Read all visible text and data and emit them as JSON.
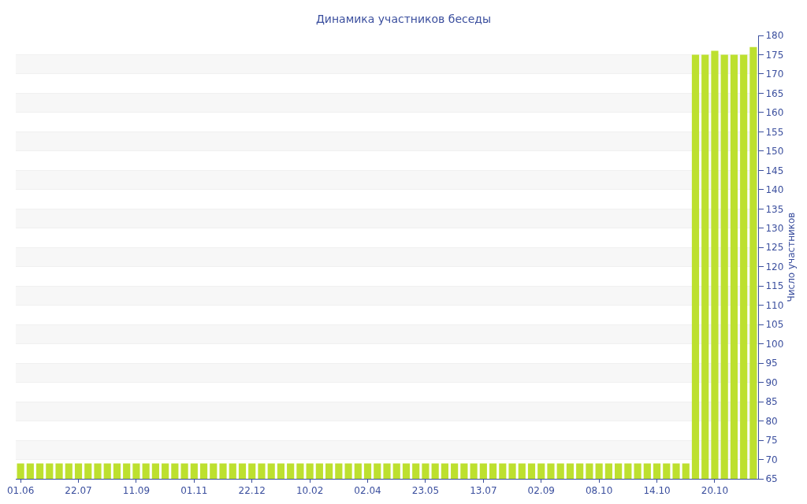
{
  "chart_data": {
    "type": "bar",
    "title": "Динамика участников беседы",
    "ylabel": "Число участников",
    "categories": [
      "01.06",
      null,
      null,
      null,
      null,
      null,
      "22.07",
      null,
      null,
      null,
      null,
      null,
      "11.09",
      null,
      null,
      null,
      null,
      null,
      "01.11",
      null,
      null,
      null,
      null,
      null,
      "22.12",
      null,
      null,
      null,
      null,
      null,
      "10.02",
      null,
      null,
      null,
      null,
      null,
      "02.04",
      null,
      null,
      null,
      null,
      null,
      "23.05",
      null,
      null,
      null,
      null,
      null,
      "13.07",
      null,
      null,
      null,
      null,
      null,
      "02.09",
      null,
      null,
      null,
      null,
      null,
      "08.10",
      null,
      null,
      null,
      null,
      null,
      "14.10",
      null,
      null,
      null,
      null,
      null,
      "20.10",
      null,
      null,
      null,
      null
    ],
    "values": [
      69,
      69,
      69,
      69,
      69,
      69,
      69,
      69,
      69,
      69,
      69,
      69,
      69,
      69,
      69,
      69,
      69,
      69,
      69,
      69,
      69,
      69,
      69,
      69,
      69,
      69,
      69,
      69,
      69,
      69,
      69,
      69,
      69,
      69,
      69,
      69,
      69,
      69,
      69,
      69,
      69,
      69,
      69,
      69,
      69,
      69,
      69,
      69,
      69,
      69,
      69,
      69,
      69,
      69,
      69,
      69,
      69,
      69,
      69,
      69,
      69,
      69,
      69,
      69,
      69,
      69,
      69,
      69,
      69,
      69,
      175,
      175,
      176,
      175,
      175,
      175,
      177
    ],
    "color": "#bde02f",
    "ylim": [
      65,
      180
    ],
    "yticks": [
      65,
      70,
      75,
      80,
      85,
      90,
      95,
      100,
      105,
      110,
      115,
      120,
      125,
      130,
      135,
      140,
      145,
      150,
      155,
      160,
      165,
      170,
      175,
      180
    ],
    "grid": "y"
  }
}
